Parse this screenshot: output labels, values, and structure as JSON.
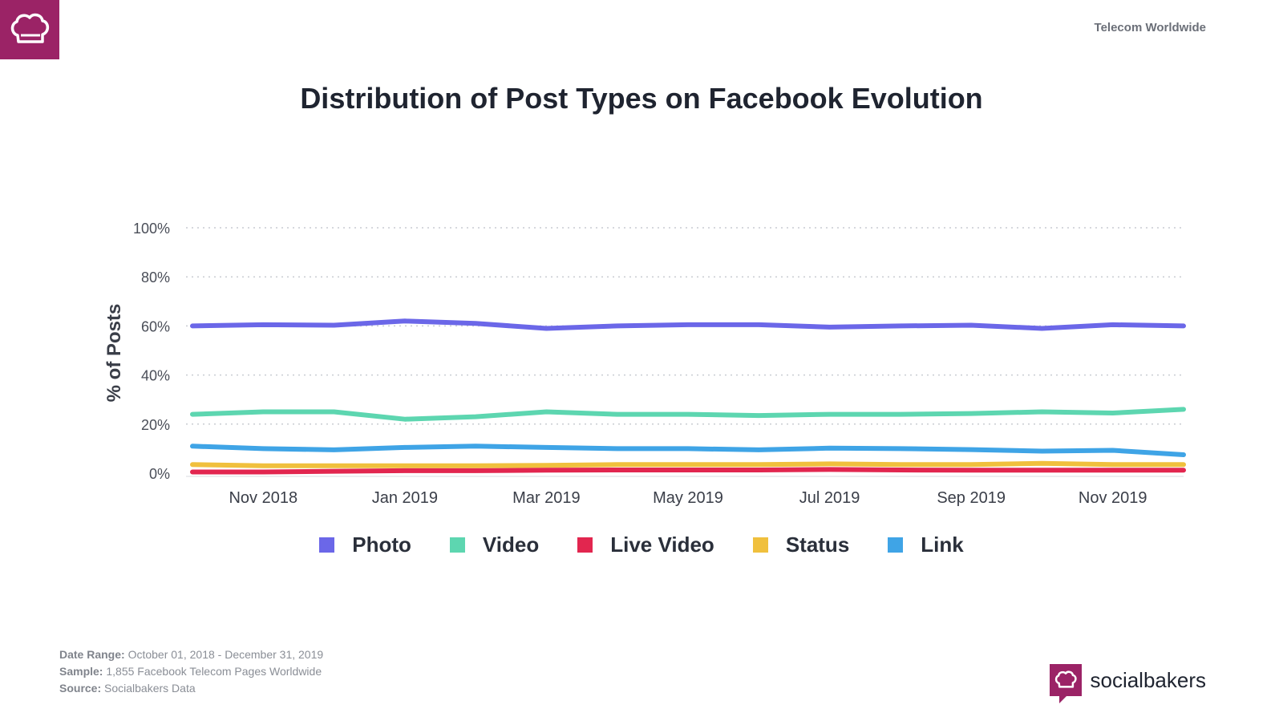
{
  "header": {
    "region": "Telecom Worldwide",
    "logo_icon": "chef-hat-icon"
  },
  "chart_data": {
    "type": "line",
    "title": "Distribution of Post Types on Facebook Evolution",
    "xlabel": "",
    "ylabel": "% of Posts",
    "ylim": [
      0,
      100
    ],
    "yticks": [
      "0%",
      "20%",
      "40%",
      "60%",
      "80%",
      "100%"
    ],
    "ytick_values": [
      0,
      20,
      40,
      60,
      80,
      100
    ],
    "grid": true,
    "legend_position": "bottom-center",
    "x": [
      "Oct 2018",
      "Nov 2018",
      "Dec 2018",
      "Jan 2019",
      "Feb 2019",
      "Mar 2019",
      "Apr 2019",
      "May 2019",
      "Jun 2019",
      "Jul 2019",
      "Aug 2019",
      "Sep 2019",
      "Oct 2019",
      "Nov 2019",
      "Dec 2019"
    ],
    "xtick_labels": [
      {
        "index": 1,
        "label": "Nov 2018"
      },
      {
        "index": 3,
        "label": "Jan 2019"
      },
      {
        "index": 5,
        "label": "Mar 2019"
      },
      {
        "index": 7,
        "label": "May 2019"
      },
      {
        "index": 9,
        "label": "Jul 2019"
      },
      {
        "index": 11,
        "label": "Sep 2019"
      },
      {
        "index": 13,
        "label": "Nov 2019"
      }
    ],
    "series": [
      {
        "name": "Photo",
        "color": "#6b67e8",
        "values": [
          60,
          60.5,
          60.3,
          62,
          61,
          59,
          60,
          60.5,
          60.5,
          59.5,
          60,
          60.3,
          59,
          60.5,
          60
        ]
      },
      {
        "name": "Video",
        "color": "#5dd6b0",
        "values": [
          24,
          25,
          25,
          22,
          23,
          25,
          24,
          24,
          23.5,
          24,
          24,
          24.3,
          25,
          24.5,
          26
        ]
      },
      {
        "name": "Live Video",
        "color": "#e2264f",
        "values": [
          0.5,
          0.5,
          0.8,
          1,
          1,
          1.2,
          1.3,
          1.3,
          1.3,
          1.5,
          1.3,
          1.2,
          1.2,
          1.2,
          1.2
        ]
      },
      {
        "name": "Status",
        "color": "#f0c03d",
        "values": [
          3.5,
          3,
          3,
          3,
          3,
          3.2,
          3.5,
          3.5,
          3.5,
          3.8,
          3.5,
          3.5,
          4,
          3.5,
          3.5
        ]
      },
      {
        "name": "Link",
        "color": "#3fa4e6",
        "values": [
          11,
          10,
          9.5,
          10.5,
          11,
          10.5,
          10,
          10,
          9.5,
          10.2,
          10,
          9.6,
          9,
          9.3,
          7.5
        ]
      }
    ]
  },
  "footer": {
    "date_range_label": "Date Range:",
    "date_range_value": "October 01, 2018 - December 31, 2019",
    "sample_label": "Sample:",
    "sample_value": "1,855 Facebook Telecom Pages Worldwide",
    "source_label": "Source:",
    "source_value": "Socialbakers Data"
  },
  "brand": {
    "name": "socialbakers",
    "icon": "chef-hat-icon"
  }
}
